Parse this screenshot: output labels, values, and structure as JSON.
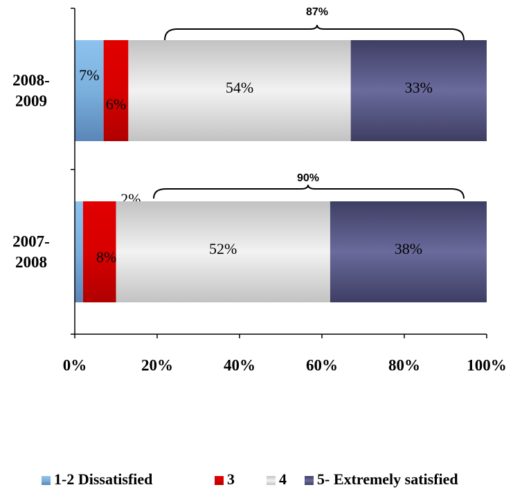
{
  "chart_data": {
    "type": "bar",
    "orientation": "horizontal",
    "stacked": true,
    "categories": [
      "2008-2009",
      "2007-2008"
    ],
    "category_label_lines": [
      [
        "2008-",
        "2009"
      ],
      [
        "2007-",
        "2008"
      ]
    ],
    "series": [
      {
        "name": "1-2 Dissatisfied",
        "values": [
          7,
          2
        ],
        "labels": [
          "7%",
          "2%"
        ]
      },
      {
        "name": "3",
        "values": [
          6,
          8
        ],
        "labels": [
          "6%",
          "8%"
        ]
      },
      {
        "name": "4",
        "values": [
          54,
          52
        ],
        "labels": [
          "54%",
          "52%"
        ]
      },
      {
        "name": "5- Extremely satisfied",
        "values": [
          33,
          38
        ],
        "labels": [
          "33%",
          "38%"
        ]
      }
    ],
    "colors": [
      "#7fb0dd",
      "#d40000",
      "#dcdcdc",
      "#5c5c8a"
    ],
    "brace_annotations": [
      "87%",
      "90%"
    ],
    "xlim": [
      0,
      100
    ],
    "xticks": [
      0,
      20,
      40,
      60,
      80,
      100
    ],
    "xtick_labels": [
      "0%",
      "20%",
      "40%",
      "60%",
      "80%",
      "100%"
    ],
    "legend_position": "bottom",
    "grid": false,
    "title": "",
    "xlabel": "",
    "ylabel": ""
  }
}
